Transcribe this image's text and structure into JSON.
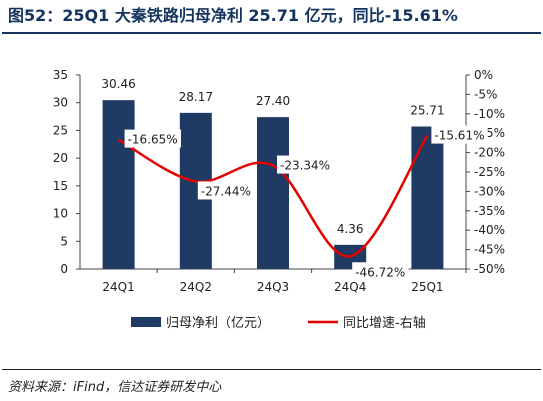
{
  "header": {
    "title": "图52：25Q1 大秦铁路归母净利 25.71 亿元，同比-15.61%"
  },
  "footer": {
    "source": "资料来源：iFind，信达证券研发中心"
  },
  "colors": {
    "bar": "#1f3a63",
    "line": "#e60000",
    "title": "#14345f",
    "axis": "#555555"
  },
  "chart_data": {
    "type": "bar",
    "categories": [
      "24Q1",
      "24Q2",
      "24Q3",
      "24Q4",
      "25Q1"
    ],
    "series": [
      {
        "name": "归母净利（亿元）",
        "type": "bar",
        "axis": "left",
        "values": [
          30.46,
          28.17,
          27.4,
          4.36,
          25.71
        ],
        "labels": [
          "30.46",
          "28.17",
          "27.40",
          "4.36",
          "25.71"
        ]
      },
      {
        "name": "同比增速-右轴",
        "type": "line",
        "axis": "right",
        "values": [
          -16.65,
          -27.44,
          -23.34,
          -46.72,
          -15.61
        ],
        "labels": [
          "-16.65%",
          "-27.44%",
          "-23.34%",
          "-46.72%",
          "-15.61%"
        ]
      }
    ],
    "y_left": {
      "min": 0,
      "max": 35,
      "step": 5,
      "ticks": [
        "0",
        "5",
        "10",
        "15",
        "20",
        "25",
        "30",
        "35"
      ]
    },
    "y_right": {
      "min": -50,
      "max": 0,
      "step": 5,
      "ticks": [
        "-50%",
        "-45%",
        "-40%",
        "-35%",
        "-30%",
        "-25%",
        "-20%",
        "-15%",
        "-10%",
        "-5%",
        "0%"
      ]
    },
    "legend_position": "bottom",
    "grid": false
  }
}
